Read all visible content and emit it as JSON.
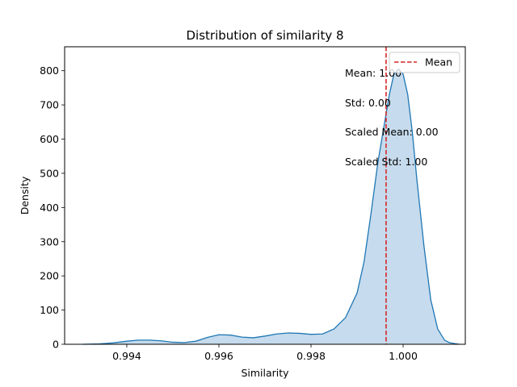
{
  "chart_data": {
    "type": "area",
    "title": "Distribution of similarity 8",
    "xlabel": "Similarity",
    "ylabel": "Density",
    "xlim": [
      0.99265,
      1.00135
    ],
    "ylim": [
      0,
      870
    ],
    "xticks": [
      0.994,
      0.996,
      0.998,
      1.0
    ],
    "xtick_labels": [
      "0.994",
      "0.996",
      "0.998",
      "1.000"
    ],
    "yticks": [
      0,
      100,
      200,
      300,
      400,
      500,
      600,
      700,
      800
    ],
    "ytick_labels": [
      "0",
      "100",
      "200",
      "300",
      "400",
      "500",
      "600",
      "700",
      "800"
    ],
    "grid": false,
    "legend": {
      "placement": "upper right",
      "entries": [
        {
          "label": "Mean",
          "color": "#d62728",
          "style": "dashed"
        }
      ]
    },
    "series": [
      {
        "name": "",
        "color": "#1f77b4",
        "fill": "#c6dbed",
        "x": [
          0.99305,
          0.9934,
          0.9937,
          0.994,
          0.99425,
          0.9945,
          0.99475,
          0.995,
          0.99525,
          0.9955,
          0.99575,
          0.996,
          0.99625,
          0.9965,
          0.99675,
          0.997,
          0.99725,
          0.9975,
          0.99775,
          0.998,
          0.99825,
          0.9985,
          0.99875,
          0.999,
          0.99915,
          0.9993,
          0.99945,
          0.9996,
          0.9997,
          0.9998,
          0.9999,
          1.0,
          1.0001,
          1.0002,
          1.0003,
          1.00045,
          1.0006,
          1.00075,
          1.0009,
          1.001,
          1.00112,
          1.00122
        ],
        "y": [
          0,
          1,
          4,
          9,
          12,
          12,
          10,
          6,
          5,
          9,
          20,
          28,
          27,
          21,
          19,
          24,
          30,
          33,
          32,
          29,
          30,
          45,
          78,
          150,
          240,
          380,
          530,
          650,
          730,
          790,
          805,
          790,
          730,
          620,
          480,
          290,
          130,
          45,
          12,
          5,
          2,
          0
        ]
      }
    ],
    "mean_line_x": 0.99963
  },
  "annotations": [
    "Mean: 1.00",
    "Std: 0.00",
    "Scaled Mean: 0.00",
    "Scaled Std: 1.00"
  ],
  "colors": {
    "kde_line": "#1f77b4",
    "kde_fill": "#c6dbed",
    "mean_line": "#d62728",
    "axes": "#000000"
  }
}
